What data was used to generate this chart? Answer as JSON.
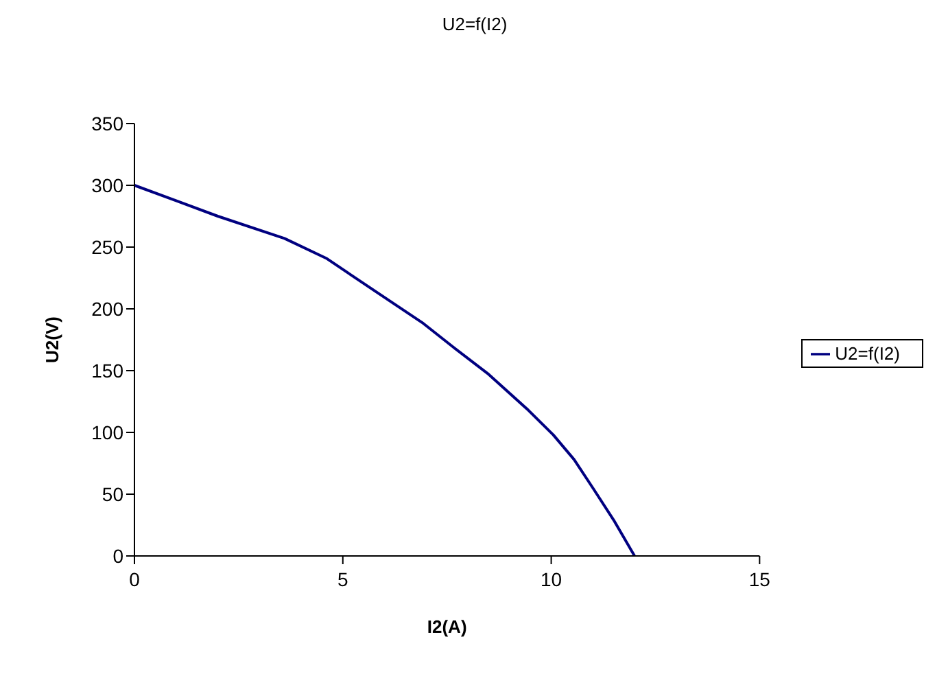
{
  "chart_data": {
    "type": "line",
    "title": "U2=f(I2)",
    "xlabel": "I2(A)",
    "ylabel": "U2(V)",
    "x": [
      0,
      2,
      3.6,
      4.6,
      5.7,
      6.9,
      7.65,
      8.5,
      9.45,
      10.05,
      10.55,
      11,
      11.5,
      12
    ],
    "series": [
      {
        "name": "U2=f(I2)",
        "color": "#000080",
        "values": [
          300,
          275,
          257,
          241,
          216,
          189,
          169,
          147,
          118,
          98,
          78,
          55,
          29,
          0
        ]
      }
    ],
    "xlim": [
      0,
      15
    ],
    "xticks": [
      0,
      5,
      10,
      15
    ],
    "ylim": [
      0,
      350
    ],
    "yticks": [
      0,
      50,
      100,
      150,
      200,
      250,
      300,
      350
    ],
    "grid": false,
    "legend": "right",
    "marker": "none",
    "line_style": "solid"
  }
}
